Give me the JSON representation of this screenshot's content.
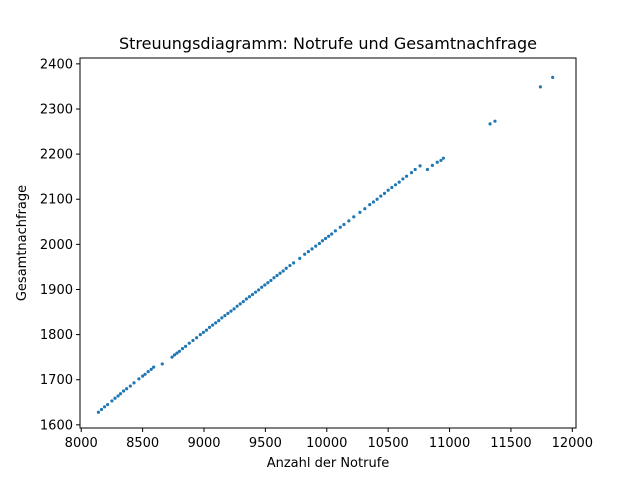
{
  "chart_data": {
    "type": "scatter",
    "title": "Streuungsdiagramm: Notrufe und Gesamtnachfrage",
    "xlabel": "Anzahl der Notrufe",
    "ylabel": "Gesamtnachfrage",
    "xlim": [
      7990,
      12030
    ],
    "ylim": [
      1593,
      2413
    ],
    "xticks": [
      8000,
      8500,
      9000,
      9500,
      10000,
      10500,
      11000,
      11500,
      12000
    ],
    "xtick_labels": [
      "8000",
      "8500",
      "9000",
      "9500",
      "10000",
      "10500",
      "11000",
      "11500",
      "12000"
    ],
    "yticks": [
      1600,
      1700,
      1800,
      1900,
      2000,
      2100,
      2200,
      2300,
      2400
    ],
    "ytick_labels": [
      "1600",
      "1700",
      "1800",
      "1900",
      "2000",
      "2100",
      "2200",
      "2300",
      "2400"
    ],
    "grid": false,
    "color": "#1f77b4",
    "x": [
      8140,
      8165,
      8190,
      8215,
      8250,
      8275,
      8300,
      8320,
      8345,
      8370,
      8400,
      8430,
      8470,
      8500,
      8520,
      8545,
      8570,
      8590,
      8660,
      8740,
      8760,
      8780,
      8800,
      8825,
      8850,
      8880,
      8910,
      8940,
      8970,
      8995,
      9020,
      9045,
      9070,
      9095,
      9120,
      9145,
      9170,
      9195,
      9220,
      9245,
      9270,
      9295,
      9320,
      9345,
      9370,
      9395,
      9420,
      9445,
      9470,
      9495,
      9520,
      9545,
      9570,
      9595,
      9620,
      9645,
      9670,
      9700,
      9730,
      9780,
      9820,
      9850,
      9880,
      9910,
      9940,
      9965,
      9990,
      10015,
      10040,
      10070,
      10110,
      10140,
      10180,
      10220,
      10270,
      10310,
      10350,
      10380,
      10410,
      10440,
      10470,
      10500,
      10530,
      10560,
      10590,
      10620,
      10650,
      10690,
      10720,
      10760,
      10820,
      10860,
      10900,
      10930,
      10950,
      11330,
      11370,
      11740,
      11840
    ],
    "y": [
      1628,
      1634,
      1640,
      1645,
      1653,
      1659,
      1664,
      1669,
      1675,
      1680,
      1686,
      1693,
      1702,
      1708,
      1712,
      1718,
      1723,
      1728,
      1735,
      1750,
      1755,
      1759,
      1763,
      1769,
      1774,
      1781,
      1787,
      1793,
      1800,
      1805,
      1810,
      1816,
      1821,
      1826,
      1831,
      1837,
      1842,
      1847,
      1852,
      1857,
      1863,
      1868,
      1873,
      1879,
      1884,
      1889,
      1894,
      1899,
      1905,
      1910,
      1915,
      1920,
      1926,
      1931,
      1936,
      1941,
      1947,
      1953,
      1959,
      1969,
      1978,
      1984,
      1990,
      1996,
      2002,
      2008,
      2013,
      2018,
      2023,
      2030,
      2038,
      2044,
      2052,
      2061,
      2071,
      2079,
      2088,
      2094,
      2100,
      2107,
      2113,
      2120,
      2126,
      2132,
      2138,
      2145,
      2151,
      2159,
      2166,
      2174,
      2166,
      2175,
      2182,
      2186,
      2191,
      2267,
      2273,
      2349,
      2370
    ]
  }
}
